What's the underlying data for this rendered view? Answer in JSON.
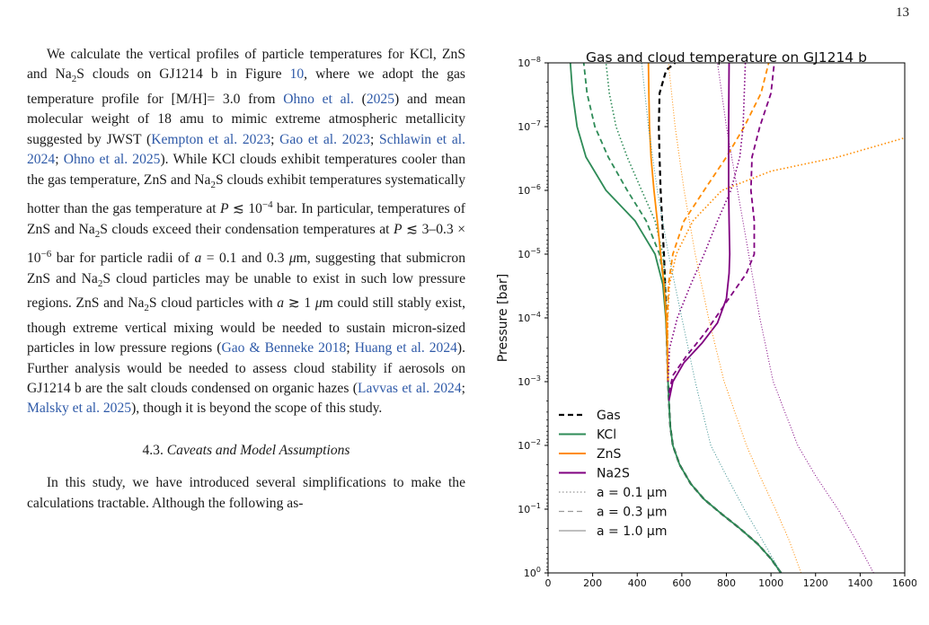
{
  "page_number": "13",
  "body": {
    "paragraph1": [
      {
        "t": "We calculate the vertical profiles of particle temperatures for KCl, ZnS and Na"
      },
      {
        "sub": "2"
      },
      {
        "t": "S clouds on GJ1214 b in Figure "
      },
      {
        "t": "10",
        "cite": true
      },
      {
        "t": ", where we adopt the gas temperature profile for [M/H]= 3.0 from "
      },
      {
        "t": "Ohno et al.",
        "cite": true
      },
      {
        "t": " ("
      },
      {
        "t": "2025",
        "cite": true
      },
      {
        "t": ") and mean molecular weight of 18 amu to mimic extreme atmospheric metallicity suggested by JWST ("
      },
      {
        "t": "Kempton et al. 2023",
        "cite": true
      },
      {
        "t": "; "
      },
      {
        "t": "Gao et al. 2023",
        "cite": true
      },
      {
        "t": "; "
      },
      {
        "t": "Schlawin et al. 2024",
        "cite": true
      },
      {
        "t": "; "
      },
      {
        "t": "Ohno et al. 2025",
        "cite": true
      },
      {
        "t": "). While KCl clouds exhibit temperatures cooler than the gas temperature, ZnS and Na"
      },
      {
        "sub": "2"
      },
      {
        "t": "S clouds exhibit temperatures systematically hotter than the gas temperature at "
      },
      {
        "t": "P",
        "it": true
      },
      {
        "t": " ≲ 10"
      },
      {
        "sup": "−4"
      },
      {
        "t": " bar. In particular, temperatures of ZnS and Na"
      },
      {
        "sub": "2"
      },
      {
        "t": "S clouds exceed their condensation temperatures at "
      },
      {
        "t": "P",
        "it": true
      },
      {
        "t": " ≲ 3–0.3 × 10"
      },
      {
        "sup": "−6"
      },
      {
        "t": " bar for particle radii of "
      },
      {
        "t": "a",
        "it": true
      },
      {
        "t": " = 0.1 and 0.3 "
      },
      {
        "t": "μ",
        "it": true
      },
      {
        "t": "m, suggesting that submicron ZnS and Na"
      },
      {
        "sub": "2"
      },
      {
        "t": "S cloud particles may be unable to exist in such low pressure regions. ZnS and Na"
      },
      {
        "sub": "2"
      },
      {
        "t": "S cloud particles with "
      },
      {
        "t": "a",
        "it": true
      },
      {
        "t": " ≳ 1 "
      },
      {
        "t": "μ",
        "it": true
      },
      {
        "t": "m could still stably exist, though extreme vertical mixing would be needed to sustain micron-sized particles in low pressure regions ("
      },
      {
        "t": "Gao & Benneke 2018",
        "cite": true
      },
      {
        "t": "; "
      },
      {
        "t": "Huang et al. 2024",
        "cite": true
      },
      {
        "t": "). Further analysis would be needed to assess cloud stability if aerosols on GJ1214 b are the salt clouds condensed on organic hazes ("
      },
      {
        "t": "Lavvas et al. 2024",
        "cite": true
      },
      {
        "t": "; "
      },
      {
        "t": "Malsky et al. 2025",
        "cite": true
      },
      {
        "t": "), though it is beyond the scope of this study."
      }
    ],
    "section_number": "4.3.",
    "section_title": "Caveats and Model Assumptions",
    "paragraph2": "In this study, we have introduced several simplifications to make the calculations tractable. Although the following as-"
  },
  "chart_data": {
    "type": "line",
    "title": "Gas and cloud temperature on GJ1214 b",
    "xlabel": "Particle Temperature [K]",
    "ylabel": "Pressure [bar]",
    "xlim": [
      0,
      1600
    ],
    "ylim": [
      1,
      1e-08
    ],
    "yscale": "log",
    "grid": false,
    "legend_position": "lower-left",
    "xticks": [
      "0",
      "200",
      "400",
      "600",
      "800",
      "1000",
      "1200",
      "1400",
      "1600"
    ],
    "yticks": [
      {
        "p": 1e-08,
        "exp": "−8"
      },
      {
        "p": 1e-07,
        "exp": "−7"
      },
      {
        "p": 1e-06,
        "exp": "−6"
      },
      {
        "p": 1e-05,
        "exp": "−5"
      },
      {
        "p": 0.0001,
        "exp": "−4"
      },
      {
        "p": 0.001,
        "exp": "−3"
      },
      {
        "p": 0.01,
        "exp": "−2"
      },
      {
        "p": 0.1,
        "exp": "−1"
      },
      {
        "p": 1,
        "exp": "0"
      }
    ],
    "legend": [
      {
        "label": "Gas",
        "color": "#000000",
        "dash": "6,4",
        "width": 2.2
      },
      {
        "label": "KCl",
        "color": "#2e8b57",
        "dash": "",
        "width": 2
      },
      {
        "label": "ZnS",
        "color": "#ff8c00",
        "dash": "",
        "width": 2
      },
      {
        "label": "Na2S",
        "color": "#800080",
        "dash": "",
        "width": 2
      },
      {
        "label": "a = 0.1 μm",
        "color": "#999999",
        "dash": "1.5,2.5",
        "width": 1.2
      },
      {
        "label": "a = 0.3 μm",
        "color": "#999999",
        "dash": "6,4",
        "width": 1.2
      },
      {
        "label": "a = 1.0 μm",
        "color": "#999999",
        "dash": "",
        "width": 1.2
      }
    ],
    "series": [
      {
        "name": "Gas",
        "color": "#000000",
        "dash": "6,4",
        "width": 2.2,
        "points": [
          [
            1045,
            1
          ],
          [
            1000,
            0.6
          ],
          [
            940,
            0.35
          ],
          [
            860,
            0.2
          ],
          [
            780,
            0.12
          ],
          [
            700,
            0.07
          ],
          [
            640,
            0.04
          ],
          [
            590,
            0.02
          ],
          [
            560,
            0.01
          ],
          [
            548,
            0.005
          ],
          [
            542,
            0.002
          ],
          [
            538,
            0.001
          ],
          [
            534,
            0.0003
          ],
          [
            530,
            0.0001
          ],
          [
            525,
            3e-05
          ],
          [
            520,
            1e-05
          ],
          [
            512,
            3e-06
          ],
          [
            505,
            1e-06
          ],
          [
            500,
            3e-07
          ],
          [
            497,
            1e-07
          ],
          [
            500,
            3e-08
          ],
          [
            530,
            1.3e-08
          ],
          [
            570,
            1e-08
          ]
        ]
      },
      {
        "name": "KCl a = 1.0 μm",
        "color": "#2e8b57",
        "dash": "",
        "width": 1.8,
        "points": [
          [
            1045,
            1
          ],
          [
            1000,
            0.6
          ],
          [
            940,
            0.35
          ],
          [
            860,
            0.2
          ],
          [
            780,
            0.12
          ],
          [
            700,
            0.07
          ],
          [
            640,
            0.04
          ],
          [
            590,
            0.02
          ],
          [
            560,
            0.01
          ],
          [
            548,
            0.005
          ],
          [
            542,
            0.002
          ],
          [
            538,
            0.001
          ],
          [
            534,
            0.0003
          ],
          [
            528,
            0.0001
          ],
          [
            515,
            3e-05
          ],
          [
            480,
            1e-05
          ],
          [
            390,
            3e-06
          ],
          [
            260,
            1e-06
          ],
          [
            170,
            3e-07
          ],
          [
            130,
            1e-07
          ],
          [
            110,
            3e-08
          ],
          [
            100,
            1e-08
          ]
        ]
      },
      {
        "name": "KCl a = 0.3 μm",
        "color": "#2e8b57",
        "dash": "6,4",
        "width": 1.8,
        "points": [
          [
            530,
            0.0001
          ],
          [
            522,
            3e-05
          ],
          [
            500,
            1e-05
          ],
          [
            440,
            3e-06
          ],
          [
            355,
            1e-06
          ],
          [
            270,
            3e-07
          ],
          [
            210,
            1e-07
          ],
          [
            175,
            3e-08
          ],
          [
            160,
            1e-08
          ]
        ]
      },
      {
        "name": "KCl a = 0.1 μm",
        "color": "#2e8b57",
        "dash": "1.5,2.5",
        "width": 1.6,
        "points": [
          [
            530,
            0.0001
          ],
          [
            526,
            3e-05
          ],
          [
            515,
            1e-05
          ],
          [
            480,
            3e-06
          ],
          [
            420,
            1e-06
          ],
          [
            355,
            3e-07
          ],
          [
            305,
            1e-07
          ],
          [
            275,
            3e-08
          ],
          [
            260,
            1e-08
          ]
        ]
      },
      {
        "name": "ZnS a = 1.0 μm",
        "color": "#ff8c00",
        "dash": "",
        "width": 1.8,
        "points": [
          [
            538,
            0.001
          ],
          [
            535,
            0.0003
          ],
          [
            530,
            0.0001
          ],
          [
            520,
            3e-05
          ],
          [
            505,
            1e-05
          ],
          [
            490,
            3e-06
          ],
          [
            475,
            1e-06
          ],
          [
            462,
            3e-07
          ],
          [
            455,
            1e-07
          ],
          [
            452,
            3e-08
          ],
          [
            450,
            1e-08
          ]
        ]
      },
      {
        "name": "ZnS a = 0.3 μm",
        "color": "#ff8c00",
        "dash": "6,4",
        "width": 1.8,
        "points": [
          [
            538,
            0.001
          ],
          [
            536,
            0.0003
          ],
          [
            535,
            0.0001
          ],
          [
            540,
            3e-05
          ],
          [
            560,
            1e-05
          ],
          [
            610,
            3e-06
          ],
          [
            700,
            1e-06
          ],
          [
            800,
            3e-07
          ],
          [
            880,
            1e-07
          ],
          [
            955,
            3e-08
          ],
          [
            990,
            1e-08
          ]
        ]
      },
      {
        "name": "ZnS a = 0.1 μm",
        "color": "#ff8c00",
        "dash": "1.5,2.5",
        "width": 1.6,
        "points": [
          [
            538,
            0.001
          ],
          [
            537,
            0.0003
          ],
          [
            537,
            0.0001
          ],
          [
            545,
            3e-05
          ],
          [
            575,
            1e-05
          ],
          [
            650,
            3e-06
          ],
          [
            780,
            1e-06
          ],
          [
            1000,
            5e-07
          ],
          [
            1300,
            3e-07
          ],
          [
            1600,
            1.5e-07
          ]
        ]
      },
      {
        "name": "Na2S a = 1.0 μm",
        "color": "#800080",
        "dash": "",
        "width": 1.8,
        "points": [
          [
            542,
            0.002
          ],
          [
            560,
            0.001
          ],
          [
            610,
            0.0005
          ],
          [
            690,
            0.00025
          ],
          [
            760,
            0.00012
          ],
          [
            800,
            5e-05
          ],
          [
            812,
            2e-05
          ],
          [
            815,
            1e-05
          ],
          [
            812,
            3e-06
          ],
          [
            810,
            1e-06
          ],
          [
            810,
            1e-07
          ],
          [
            812,
            1e-08
          ]
        ]
      },
      {
        "name": "Na2S a = 0.3 μm",
        "color": "#800080",
        "dash": "6,4",
        "width": 1.8,
        "points": [
          [
            542,
            0.0015
          ],
          [
            560,
            0.0008
          ],
          [
            620,
            0.0004
          ],
          [
            700,
            0.00018
          ],
          [
            770,
            8e-05
          ],
          [
            830,
            4e-05
          ],
          [
            890,
            2e-05
          ],
          [
            925,
            1e-05
          ],
          [
            925,
            3e-06
          ],
          [
            910,
            1e-06
          ],
          [
            915,
            3e-07
          ],
          [
            950,
            1e-07
          ],
          [
            1000,
            3e-08
          ],
          [
            1015,
            1e-08
          ]
        ]
      },
      {
        "name": "Na2S a = 0.1 μm",
        "color": "#800080",
        "dash": "1.5,2.5",
        "width": 1.6,
        "points": [
          [
            538,
            0.001
          ],
          [
            545,
            0.0003
          ],
          [
            580,
            0.0001
          ],
          [
            640,
            3e-05
          ],
          [
            700,
            1e-05
          ],
          [
            760,
            3e-06
          ],
          [
            820,
            1e-06
          ],
          [
            860,
            3e-07
          ],
          [
            875,
            1e-07
          ],
          [
            880,
            3e-08
          ],
          [
            885,
            1e-08
          ]
        ]
      },
      {
        "name": "KCl thin a = 0.1 μm",
        "color": "#3a8f8f",
        "dash": "1,2",
        "width": 1.0,
        "points": [
          [
            1045,
            1
          ],
          [
            960,
            0.3
          ],
          [
            880,
            0.1
          ],
          [
            800,
            0.03
          ],
          [
            730,
            0.01
          ],
          [
            660,
            0.001
          ],
          [
            600,
            0.0001
          ],
          [
            540,
            1e-05
          ],
          [
            490,
            1e-06
          ],
          [
            450,
            1e-07
          ],
          [
            420,
            1e-08
          ]
        ]
      },
      {
        "name": "ZnS thin a = 0.1 μm",
        "color": "#ff8c00",
        "dash": "1,2",
        "width": 1.0,
        "points": [
          [
            1135,
            1
          ],
          [
            1080,
            0.3
          ],
          [
            1020,
            0.1
          ],
          [
            950,
            0.03
          ],
          [
            890,
            0.01
          ],
          [
            790,
            0.001
          ],
          [
            720,
            0.0001
          ],
          [
            660,
            1e-05
          ],
          [
            610,
            1e-06
          ],
          [
            570,
            1e-07
          ],
          [
            540,
            1e-08
          ]
        ]
      },
      {
        "name": "Na2S thin a = 0.1 μm",
        "color": "#800080",
        "dash": "1,2",
        "width": 1.0,
        "points": [
          [
            1460,
            1
          ],
          [
            1380,
            0.3
          ],
          [
            1300,
            0.1
          ],
          [
            1200,
            0.03
          ],
          [
            1120,
            0.01
          ],
          [
            1010,
            0.001
          ],
          [
            950,
            0.0001
          ],
          [
            900,
            1e-05
          ],
          [
            850,
            1e-06
          ],
          [
            800,
            1e-07
          ],
          [
            760,
            1e-08
          ]
        ]
      }
    ]
  }
}
